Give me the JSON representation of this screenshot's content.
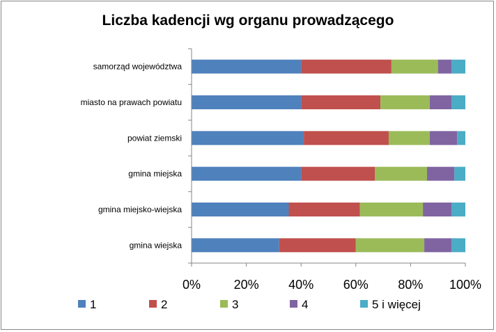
{
  "chart_data": {
    "type": "bar",
    "orientation": "horizontal",
    "stacked": "percent",
    "title": "Liczba kadencji wg organu prowadzącego",
    "categories": [
      "samorząd województwa",
      "miasto na prawach powiatu",
      "powiat ziemski",
      "gmina miejska",
      "gmina miejsko-wiejska",
      "gmina wiejska"
    ],
    "series": [
      {
        "name": "1",
        "color": "#4F81BD",
        "values": [
          40,
          40,
          41,
          40,
          35.5,
          32
        ]
      },
      {
        "name": "2",
        "color": "#C0504D",
        "values": [
          33,
          29,
          31,
          27,
          26,
          28
        ]
      },
      {
        "name": "3",
        "color": "#9BBB59",
        "values": [
          17,
          18,
          15,
          19,
          23,
          25
        ]
      },
      {
        "name": "4",
        "color": "#8064A2",
        "values": [
          5,
          8,
          10,
          10,
          10.5,
          10
        ]
      },
      {
        "name": "5 i więcej",
        "color": "#4BACC6",
        "values": [
          5,
          5,
          3,
          4,
          5,
          5
        ]
      }
    ],
    "x_ticks": [
      "0%",
      "20%",
      "40%",
      "60%",
      "80%",
      "100%"
    ],
    "xlim": [
      0,
      100
    ],
    "legend_position": "bottom",
    "grid": false
  }
}
